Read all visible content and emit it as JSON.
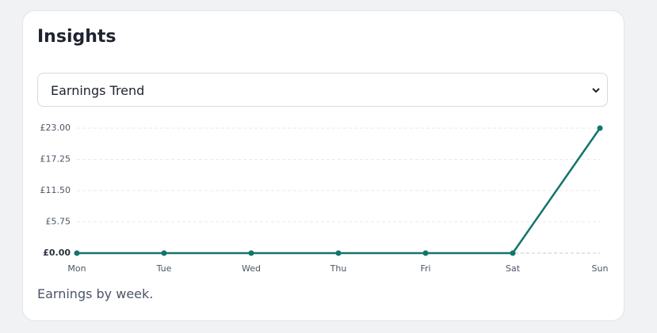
{
  "card": {
    "title": "Insights",
    "select": {
      "selected": "Earnings Trend"
    },
    "caption": "Earnings by week."
  },
  "chart_data": {
    "type": "line",
    "categories": [
      "Mon",
      "Tue",
      "Wed",
      "Thu",
      "Fri",
      "Sat",
      "Sun"
    ],
    "series": [
      {
        "color": "#13756b",
        "values": [
          0,
          0,
          0,
          0,
          0,
          0,
          23
        ]
      }
    ],
    "ylim": [
      0,
      23
    ],
    "yticks": [
      {
        "value": 0,
        "label": "£0.00"
      },
      {
        "value": 5.75,
        "label": "£5.75"
      },
      {
        "value": 11.5,
        "label": "£11.50"
      },
      {
        "value": 17.25,
        "label": "£17.25"
      },
      {
        "value": 23,
        "label": "£23.00"
      }
    ],
    "grid": true
  }
}
